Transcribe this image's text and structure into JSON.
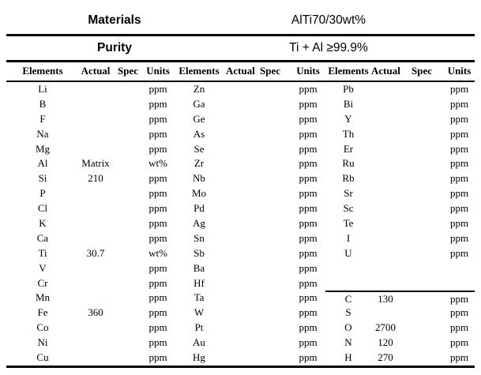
{
  "header": {
    "materials_label": "Materials",
    "materials_value": "AlTi70/30wt%",
    "purity_label": "Purity",
    "purity_value": "Ti + Al ≥99.9%"
  },
  "table": {
    "column_headers": [
      "Elements",
      "Actual",
      "Spec",
      "Units"
    ],
    "groups": [
      {
        "rows": [
          [
            "Li",
            "",
            "",
            "ppm"
          ],
          [
            "B",
            "",
            "",
            "ppm"
          ],
          [
            "F",
            "",
            "",
            "ppm"
          ],
          [
            "Na",
            "",
            "",
            "ppm"
          ],
          [
            "Mg",
            "",
            "",
            "ppm"
          ],
          [
            "Al",
            "Matrix",
            "",
            "wt%"
          ],
          [
            "Si",
            "210",
            "",
            "ppm"
          ],
          [
            "P",
            "",
            "",
            "ppm"
          ],
          [
            "Cl",
            "",
            "",
            "ppm"
          ],
          [
            "K",
            "",
            "",
            "ppm"
          ],
          [
            "Ca",
            "",
            "",
            "ppm"
          ],
          [
            "Ti",
            "30.7",
            "",
            "wt%"
          ],
          [
            "V",
            "",
            "",
            "ppm"
          ],
          [
            "Cr",
            "",
            "",
            "ppm"
          ],
          [
            "Mn",
            "",
            "",
            "ppm"
          ],
          [
            "Fe",
            "360",
            "",
            "ppm"
          ],
          [
            "Co",
            "",
            "",
            "ppm"
          ],
          [
            "Ni",
            "",
            "",
            "ppm"
          ],
          [
            "Cu",
            "",
            "",
            "ppm"
          ]
        ]
      },
      {
        "rows": [
          [
            "Zn",
            "",
            "",
            "ppm"
          ],
          [
            "Ga",
            "",
            "",
            "ppm"
          ],
          [
            "Ge",
            "",
            "",
            "ppm"
          ],
          [
            "As",
            "",
            "",
            "ppm"
          ],
          [
            "Se",
            "",
            "",
            "ppm"
          ],
          [
            "Zr",
            "",
            "",
            "ppm"
          ],
          [
            "Nb",
            "",
            "",
            "ppm"
          ],
          [
            "Mo",
            "",
            "",
            "ppm"
          ],
          [
            "Pd",
            "",
            "",
            "ppm"
          ],
          [
            "Ag",
            "",
            "",
            "ppm"
          ],
          [
            "Sn",
            "",
            "",
            "ppm"
          ],
          [
            "Sb",
            "",
            "",
            "ppm"
          ],
          [
            "Ba",
            "",
            "",
            "ppm"
          ],
          [
            "Hf",
            "",
            "",
            "ppm"
          ],
          [
            "Ta",
            "",
            "",
            "ppm"
          ],
          [
            "W",
            "",
            "",
            "ppm"
          ],
          [
            "Pt",
            "",
            "",
            "ppm"
          ],
          [
            "Au",
            "",
            "",
            "ppm"
          ],
          [
            "Hg",
            "",
            "",
            "ppm"
          ]
        ]
      },
      {
        "separator_before_row_index": 14,
        "rows": [
          [
            "Pb",
            "",
            "",
            "ppm"
          ],
          [
            "Bi",
            "",
            "",
            "ppm"
          ],
          [
            "Y",
            "",
            "",
            "ppm"
          ],
          [
            "Th",
            "",
            "",
            "ppm"
          ],
          [
            "Er",
            "",
            "",
            "ppm"
          ],
          [
            "Ru",
            "",
            "",
            "ppm"
          ],
          [
            "Rb",
            "",
            "",
            "ppm"
          ],
          [
            "Sr",
            "",
            "",
            "ppm"
          ],
          [
            "Sc",
            "",
            "",
            "ppm"
          ],
          [
            "Te",
            "",
            "",
            "ppm"
          ],
          [
            "I",
            "",
            "",
            "ppm"
          ],
          [
            "U",
            "",
            "",
            "ppm"
          ],
          [
            "",
            "",
            "",
            ""
          ],
          [
            "",
            "",
            "",
            ""
          ],
          [
            "C",
            "130",
            "",
            "ppm"
          ],
          [
            "S",
            "",
            "",
            "ppm"
          ],
          [
            "O",
            "2700",
            "",
            "ppm"
          ],
          [
            "N",
            "120",
            "",
            "ppm"
          ],
          [
            "H",
            "270",
            "",
            "ppm"
          ]
        ]
      }
    ]
  }
}
